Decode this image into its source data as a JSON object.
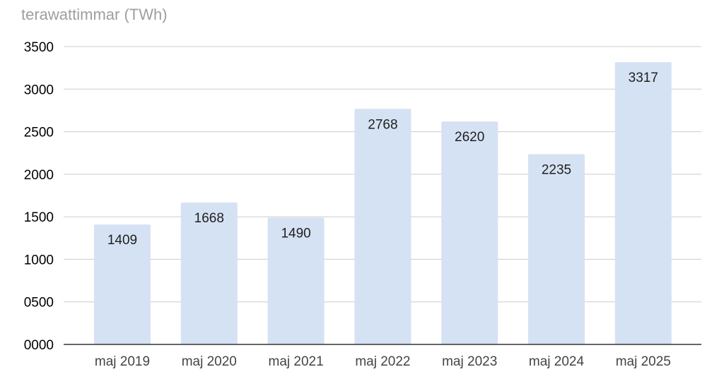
{
  "chart_data": {
    "type": "bar",
    "title": "",
    "unit_label": "terawattimmar (TWh)",
    "xlabel": "",
    "ylabel": "",
    "categories": [
      "maj 2019",
      "maj 2020",
      "maj 2021",
      "maj 2022",
      "maj 2023",
      "maj 2024",
      "maj 2025"
    ],
    "values": [
      1409,
      1668,
      1490,
      2768,
      2620,
      2235,
      3317
    ],
    "data_labels": [
      "1409",
      "1668",
      "1490",
      "2768",
      "2620",
      "2235",
      "3317"
    ],
    "ylim": [
      0,
      3500
    ],
    "yticks": [
      0,
      500,
      1000,
      1500,
      2000,
      2500,
      3000,
      3500
    ],
    "ytick_labels": [
      "0000",
      "0500",
      "1000",
      "1500",
      "2000",
      "2500",
      "3000",
      "3500"
    ],
    "grid": true,
    "legend": "none",
    "bar_color": "#d5e2f3",
    "gridline_color": "#cccccc",
    "axis_color": "#333333"
  }
}
